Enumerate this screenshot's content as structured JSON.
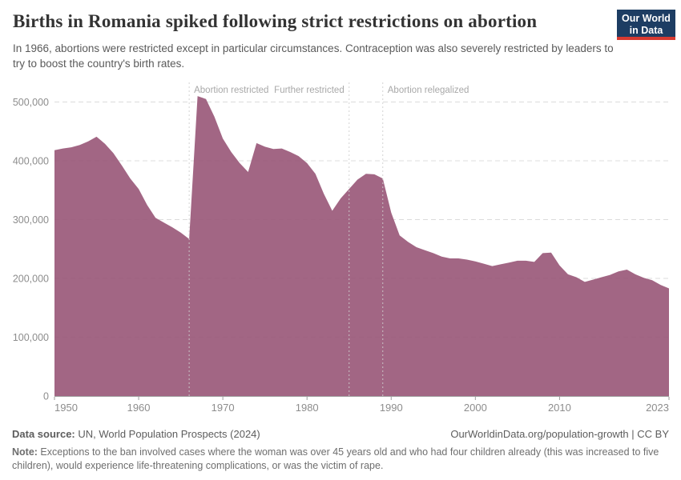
{
  "header": {
    "title": "Births in Romania spiked following strict restrictions on abortion",
    "subtitle": "In 1966, abortions were restricted except in particular circumstances. Contraception was also severely restricted by leaders to try to boost the country's birth rates.",
    "logo": {
      "line1": "Our World",
      "line2": "in Data"
    }
  },
  "chart_data": {
    "type": "area",
    "title": "Births in Romania spiked following strict restrictions on abortion",
    "series_name": "Births in Romania",
    "xlabel": "",
    "ylabel": "",
    "xlim": [
      1950,
      2023
    ],
    "ylim": [
      0,
      500000
    ],
    "grid": true,
    "legend_position": "none",
    "fill_color": "#985577",
    "x": [
      1950,
      1951,
      1952,
      1953,
      1954,
      1955,
      1956,
      1957,
      1958,
      1959,
      1960,
      1961,
      1962,
      1963,
      1964,
      1965,
      1966,
      1967,
      1968,
      1969,
      1970,
      1971,
      1972,
      1973,
      1974,
      1975,
      1976,
      1977,
      1978,
      1979,
      1980,
      1981,
      1982,
      1983,
      1984,
      1985,
      1986,
      1987,
      1988,
      1989,
      1990,
      1991,
      1992,
      1993,
      1994,
      1995,
      1996,
      1997,
      1998,
      1999,
      2000,
      2001,
      2002,
      2003,
      2004,
      2005,
      2006,
      2007,
      2008,
      2009,
      2010,
      2011,
      2012,
      2013,
      2014,
      2015,
      2016,
      2017,
      2018,
      2019,
      2020,
      2021,
      2022,
      2023
    ],
    "values": [
      418000,
      421000,
      423000,
      427000,
      433000,
      441000,
      429000,
      413000,
      392000,
      370000,
      352000,
      325000,
      303000,
      295000,
      287000,
      278000,
      267000,
      510000,
      505000,
      475000,
      438000,
      415000,
      396000,
      381000,
      430000,
      424000,
      420000,
      421000,
      415000,
      408000,
      396000,
      378000,
      344000,
      315000,
      336000,
      352000,
      368000,
      378000,
      377000,
      370000,
      312000,
      273000,
      262000,
      253000,
      248000,
      243000,
      237000,
      234000,
      234000,
      232000,
      229000,
      225000,
      221000,
      224000,
      227000,
      230000,
      230000,
      228000,
      243000,
      244000,
      222000,
      207000,
      202000,
      194000,
      198000,
      202000,
      206000,
      212000,
      215000,
      207000,
      201000,
      197000,
      189000,
      183000
    ],
    "x_ticks": [
      1950,
      1960,
      1970,
      1980,
      1990,
      2000,
      2010,
      2023
    ],
    "x_tick_labels": [
      "1950",
      "1960",
      "1970",
      "1980",
      "1990",
      "2000",
      "2010",
      "2023"
    ],
    "y_ticks": [
      0,
      100000,
      200000,
      300000,
      400000,
      500000
    ],
    "y_tick_labels": [
      "0",
      "100,000",
      "200,000",
      "300,000",
      "400,000",
      "500,000"
    ],
    "annotations": [
      {
        "year": 1966,
        "label": "Abortion restricted",
        "side": "right"
      },
      {
        "year": 1985,
        "label": "Further restricted",
        "side": "left"
      },
      {
        "year": 1989,
        "label": "Abortion relegalized",
        "side": "right"
      }
    ]
  },
  "footer": {
    "source_label": "Data source:",
    "source_text": " UN, World Population Prospects (2024)",
    "link_text": "OurWorldinData.org/population-growth | CC BY",
    "note_label": "Note:",
    "note_text": " Exceptions to the ban involved cases where the woman was over 45 years old and who had four children already (this was increased to five children), would experience life-threatening complications, or was the victim of rape."
  },
  "colors": {
    "area_fill": "#985577",
    "gridline": "#dcdcdc",
    "axis_line": "#9e9e9e",
    "tick_label": "#8d8d8d",
    "annotation": "#a8a8a8",
    "logo_bg": "#1d3d63",
    "logo_red": "#d73a31"
  }
}
